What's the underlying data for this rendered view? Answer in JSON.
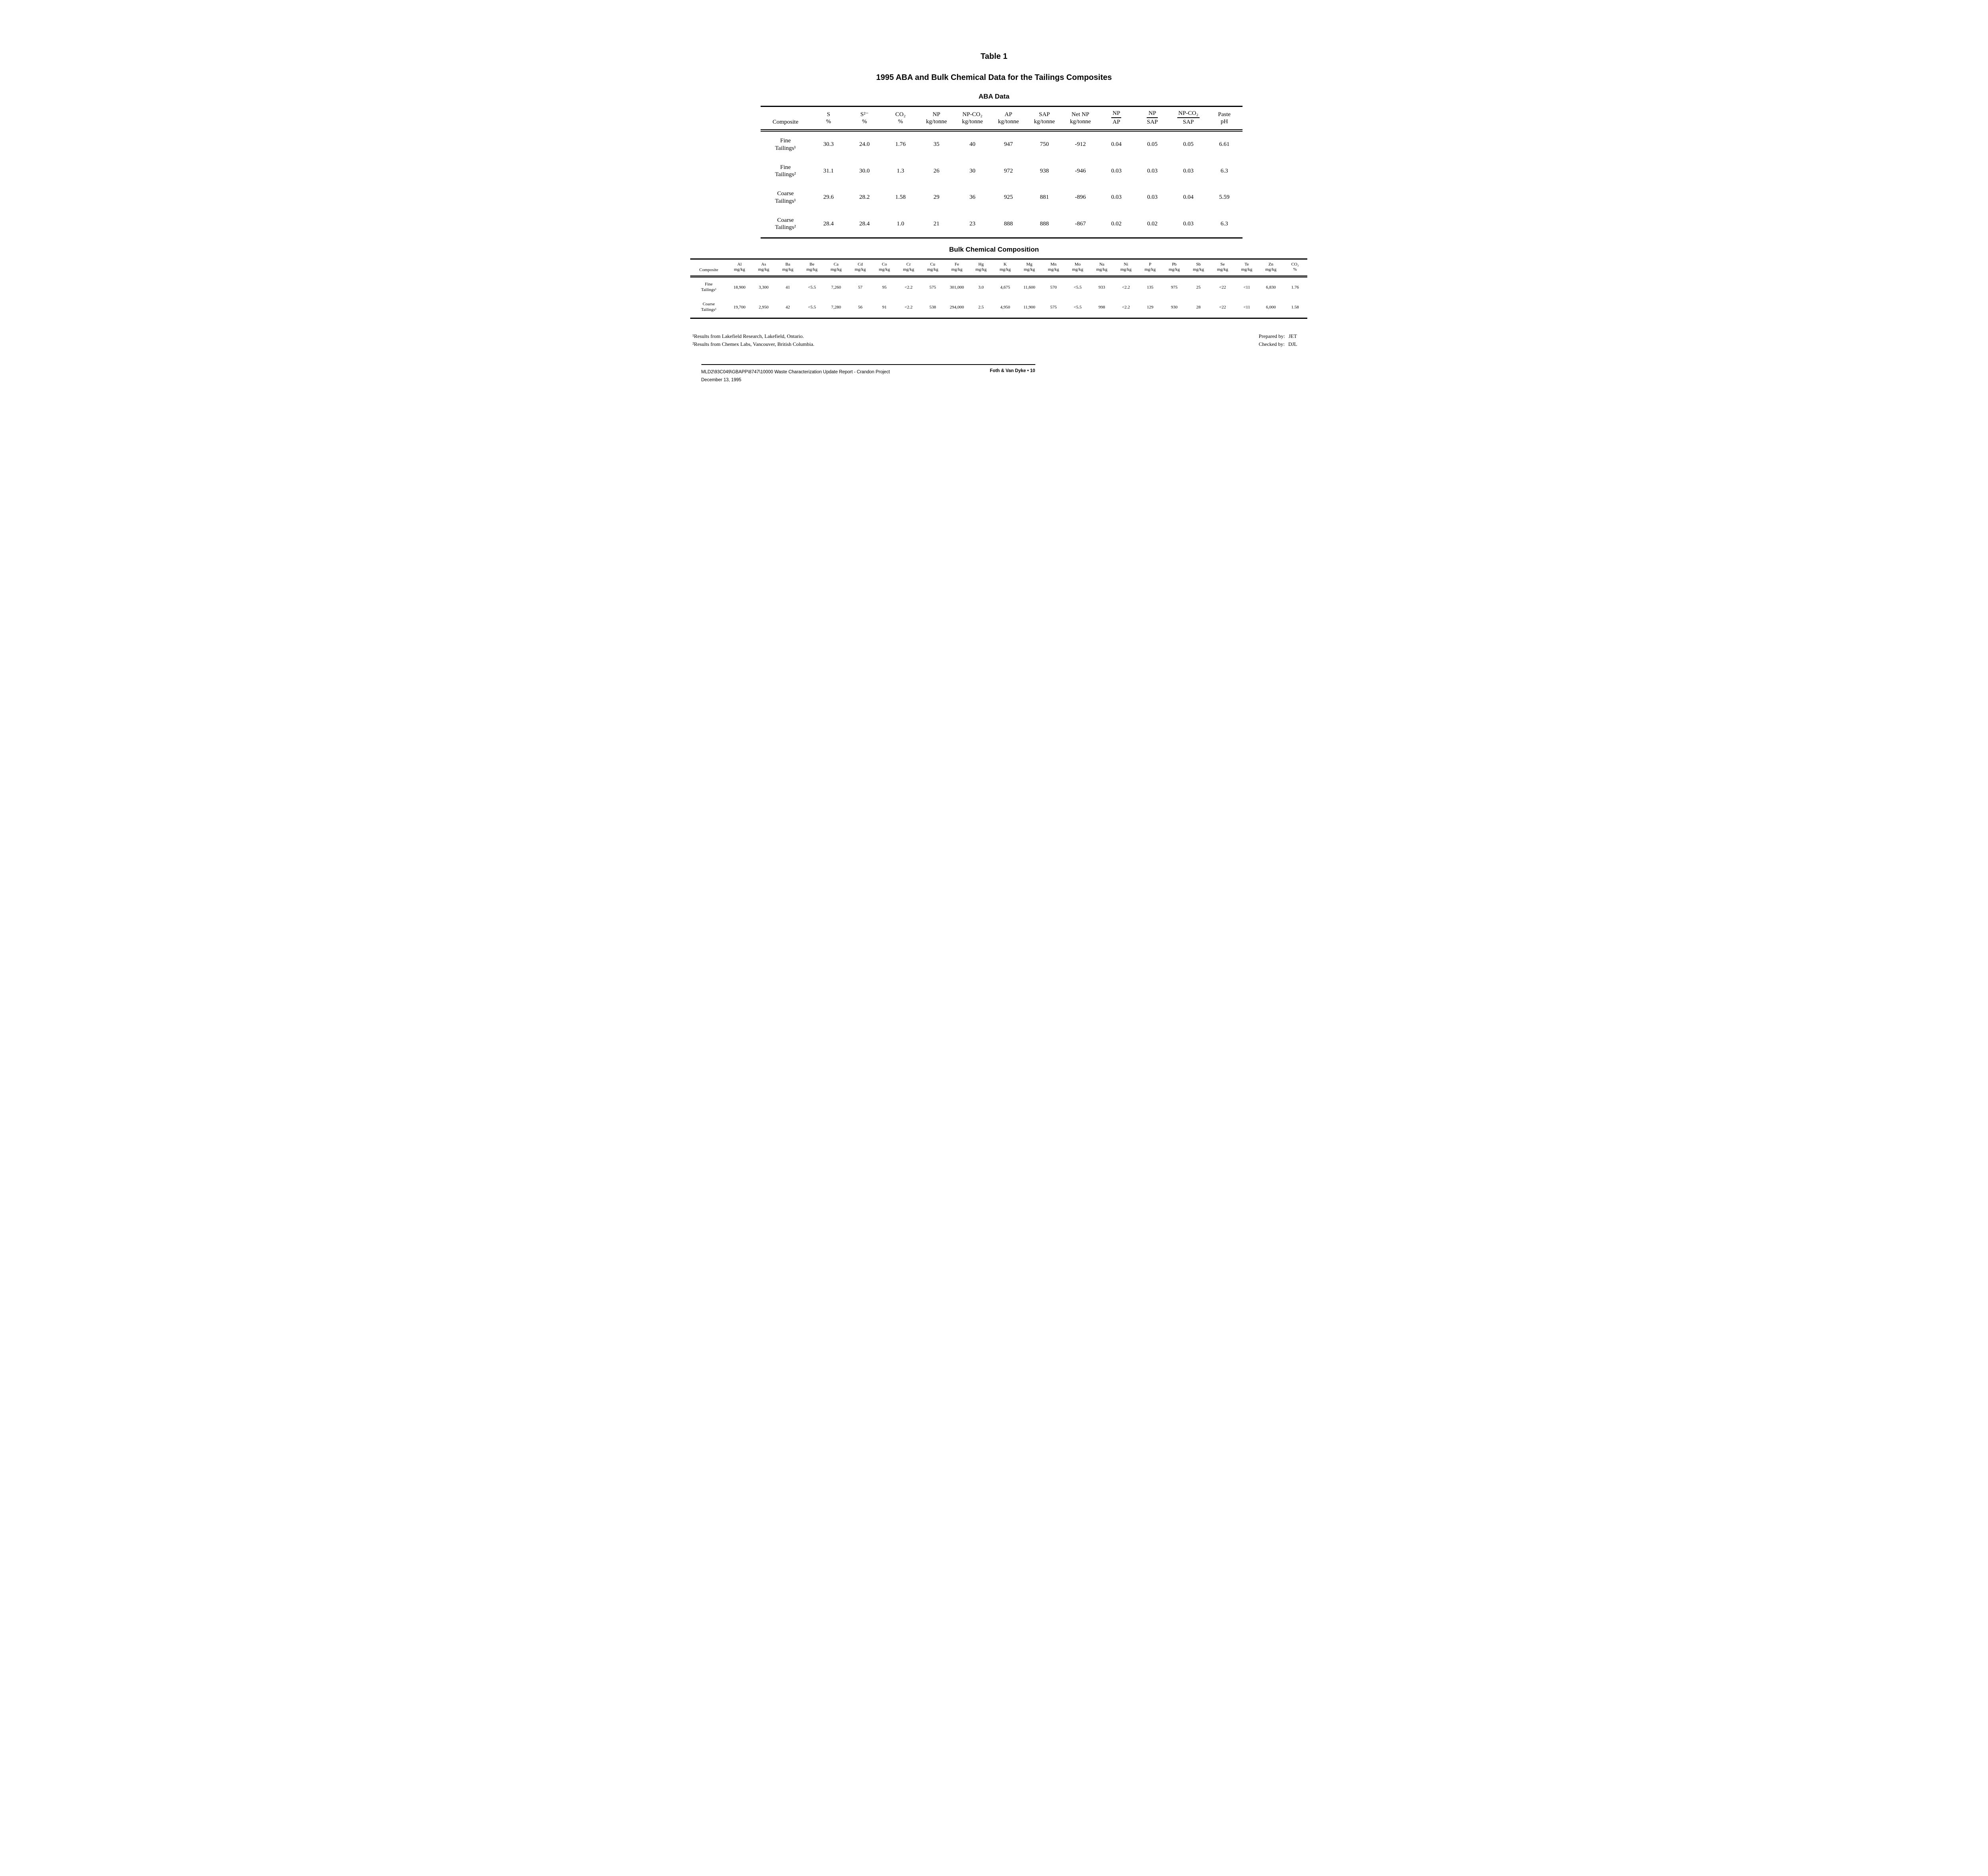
{
  "title": "Table 1",
  "subtitle": "1995 ABA and Bulk Chemical Data for the Tailings Composites",
  "aba": {
    "heading": "ABA Data",
    "columns": [
      {
        "label": "Composite",
        "unit": ""
      },
      {
        "label": "S",
        "unit": "%"
      },
      {
        "label": "S²⁻",
        "unit": "%"
      },
      {
        "label": "CO₂",
        "unit": "%"
      },
      {
        "label": "NP",
        "unit": "kg/tonne"
      },
      {
        "label": "NP-CO₂",
        "unit": "kg/tonne"
      },
      {
        "label": "AP",
        "unit": "kg/tonne"
      },
      {
        "label": "SAP",
        "unit": "kg/tonne"
      },
      {
        "label": "Net NP",
        "unit": "kg/tonne"
      },
      {
        "frac_num": "NP",
        "frac_den": "AP"
      },
      {
        "frac_num": "NP",
        "frac_den": "SAP"
      },
      {
        "frac_num": "NP-CO₂",
        "frac_den": "SAP"
      },
      {
        "label": "Paste",
        "unit": "pH"
      }
    ],
    "rows": [
      {
        "name_lines": [
          "Fine",
          "Tailings¹"
        ],
        "values": [
          "30.3",
          "24.0",
          "1.76",
          "35",
          "40",
          "947",
          "750",
          "-912",
          "0.04",
          "0.05",
          "0.05",
          "6.61"
        ]
      },
      {
        "name_lines": [
          "Fine",
          "Tailings²"
        ],
        "values": [
          "31.1",
          "30.0",
          "1.3",
          "26",
          "30",
          "972",
          "938",
          "-946",
          "0.03",
          "0.03",
          "0.03",
          "6.3"
        ]
      },
      {
        "name_lines": [
          "Coarse",
          "Tailings¹"
        ],
        "values": [
          "29.6",
          "28.2",
          "1.58",
          "29",
          "36",
          "925",
          "881",
          "-896",
          "0.03",
          "0.03",
          "0.04",
          "5.59"
        ]
      },
      {
        "name_lines": [
          "Coarse",
          "Tailings²"
        ],
        "values": [
          "28.4",
          "28.4",
          "1.0",
          "21",
          "23",
          "888",
          "888",
          "-867",
          "0.02",
          "0.02",
          "0.03",
          "6.3"
        ]
      }
    ]
  },
  "bulk": {
    "heading": "Bulk Chemical Composition",
    "columns": [
      {
        "label": "Composite",
        "unit": ""
      },
      {
        "label": "Al",
        "unit": "mg/kg"
      },
      {
        "label": "As",
        "unit": "mg/kg"
      },
      {
        "label": "Ba",
        "unit": "mg/kg"
      },
      {
        "label": "Be",
        "unit": "mg/kg"
      },
      {
        "label": "Ca",
        "unit": "mg/kg"
      },
      {
        "label": "Cd",
        "unit": "mg/kg"
      },
      {
        "label": "Co",
        "unit": "mg/kg"
      },
      {
        "label": "Cr",
        "unit": "mg/kg"
      },
      {
        "label": "Cu",
        "unit": "mg/kg"
      },
      {
        "label": "Fe",
        "unit": "mg/kg"
      },
      {
        "label": "Hg",
        "unit": "mg/kg"
      },
      {
        "label": "K",
        "unit": "mg/kg"
      },
      {
        "label": "Mg",
        "unit": "mg/kg"
      },
      {
        "label": "Mn",
        "unit": "mg/kg"
      },
      {
        "label": "Mo",
        "unit": "mg/kg"
      },
      {
        "label": "Na",
        "unit": "mg/kg"
      },
      {
        "label": "Ni",
        "unit": "mg/kg"
      },
      {
        "label": "P",
        "unit": "mg/kg"
      },
      {
        "label": "Pb",
        "unit": "mg/kg"
      },
      {
        "label": "Sb",
        "unit": "mg/kg"
      },
      {
        "label": "Se",
        "unit": "mg/kg"
      },
      {
        "label": "Te",
        "unit": "mg/kg"
      },
      {
        "label": "Zn",
        "unit": "mg/kg"
      },
      {
        "label": "CO₂",
        "unit": "%"
      }
    ],
    "rows": [
      {
        "name_lines": [
          "Fine",
          "Tailings¹"
        ],
        "values": [
          "18,900",
          "3,300",
          "41",
          "<5.5",
          "7,260",
          "57",
          "95",
          "<2.2",
          "575",
          "301,000",
          "3.0",
          "4,675",
          "11,600",
          "570",
          "<5.5",
          "933",
          "<2.2",
          "135",
          "975",
          "25",
          "<22",
          "<11",
          "6,830",
          "1.76"
        ]
      },
      {
        "name_lines": [
          "Coarse",
          "Tailings¹"
        ],
        "values": [
          "19,700",
          "2,950",
          "42",
          "<5.5",
          "7,280",
          "56",
          "91",
          "<2.2",
          "538",
          "294,000",
          "2.5",
          "4,950",
          "11,900",
          "575",
          "<5.5",
          "998",
          "<2.2",
          "129",
          "930",
          "28",
          "<22",
          "<11",
          "6,000",
          "1.58"
        ]
      }
    ]
  },
  "footnotes": [
    "¹Results from Lakefield Research, Lakefield, Ontario.",
    "²Results from Chemex Labs, Vancouver, British Columbia."
  ],
  "signoff": {
    "prepared_label": "Prepared by:",
    "prepared_value": "JET",
    "checked_label": "Checked by:",
    "checked_value": "DJL"
  },
  "footer": {
    "doc_line": "MLD2\\93C049\\GBAPP\\8747\\10000  Waste Characterization Update Report - Crandon Project",
    "date_line": "December 13, 1995",
    "page_ref": "Foth & Van Dyke • 10"
  }
}
